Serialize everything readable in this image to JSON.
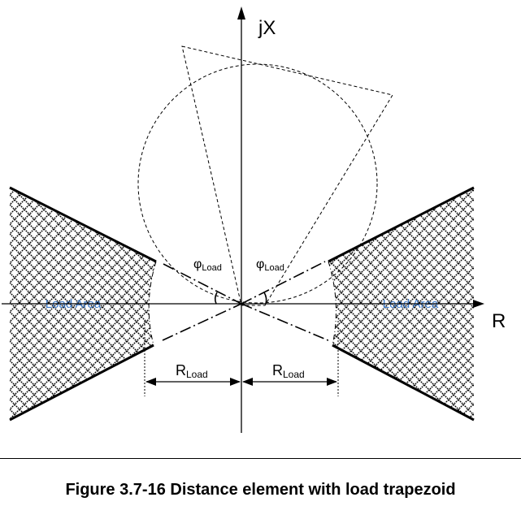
{
  "axes": {
    "vertical_label": "jX",
    "horizontal_label": "R"
  },
  "load_areas": {
    "left_label": "Load Area",
    "right_label": "Load Area"
  },
  "angles": {
    "left_symbol": "φ",
    "left_subscript": "Load",
    "right_symbol": "φ",
    "right_subscript": "Load"
  },
  "dimensions": {
    "left_symbol": "R",
    "left_subscript": "Load",
    "right_symbol": "R",
    "right_subscript": "Load"
  },
  "caption": "Figure 3.7-16 Distance element with load trapezoid",
  "colors": {
    "line": "#000000",
    "load_area_label": "#3a78c8",
    "hatch_background": "#ffffff"
  }
}
